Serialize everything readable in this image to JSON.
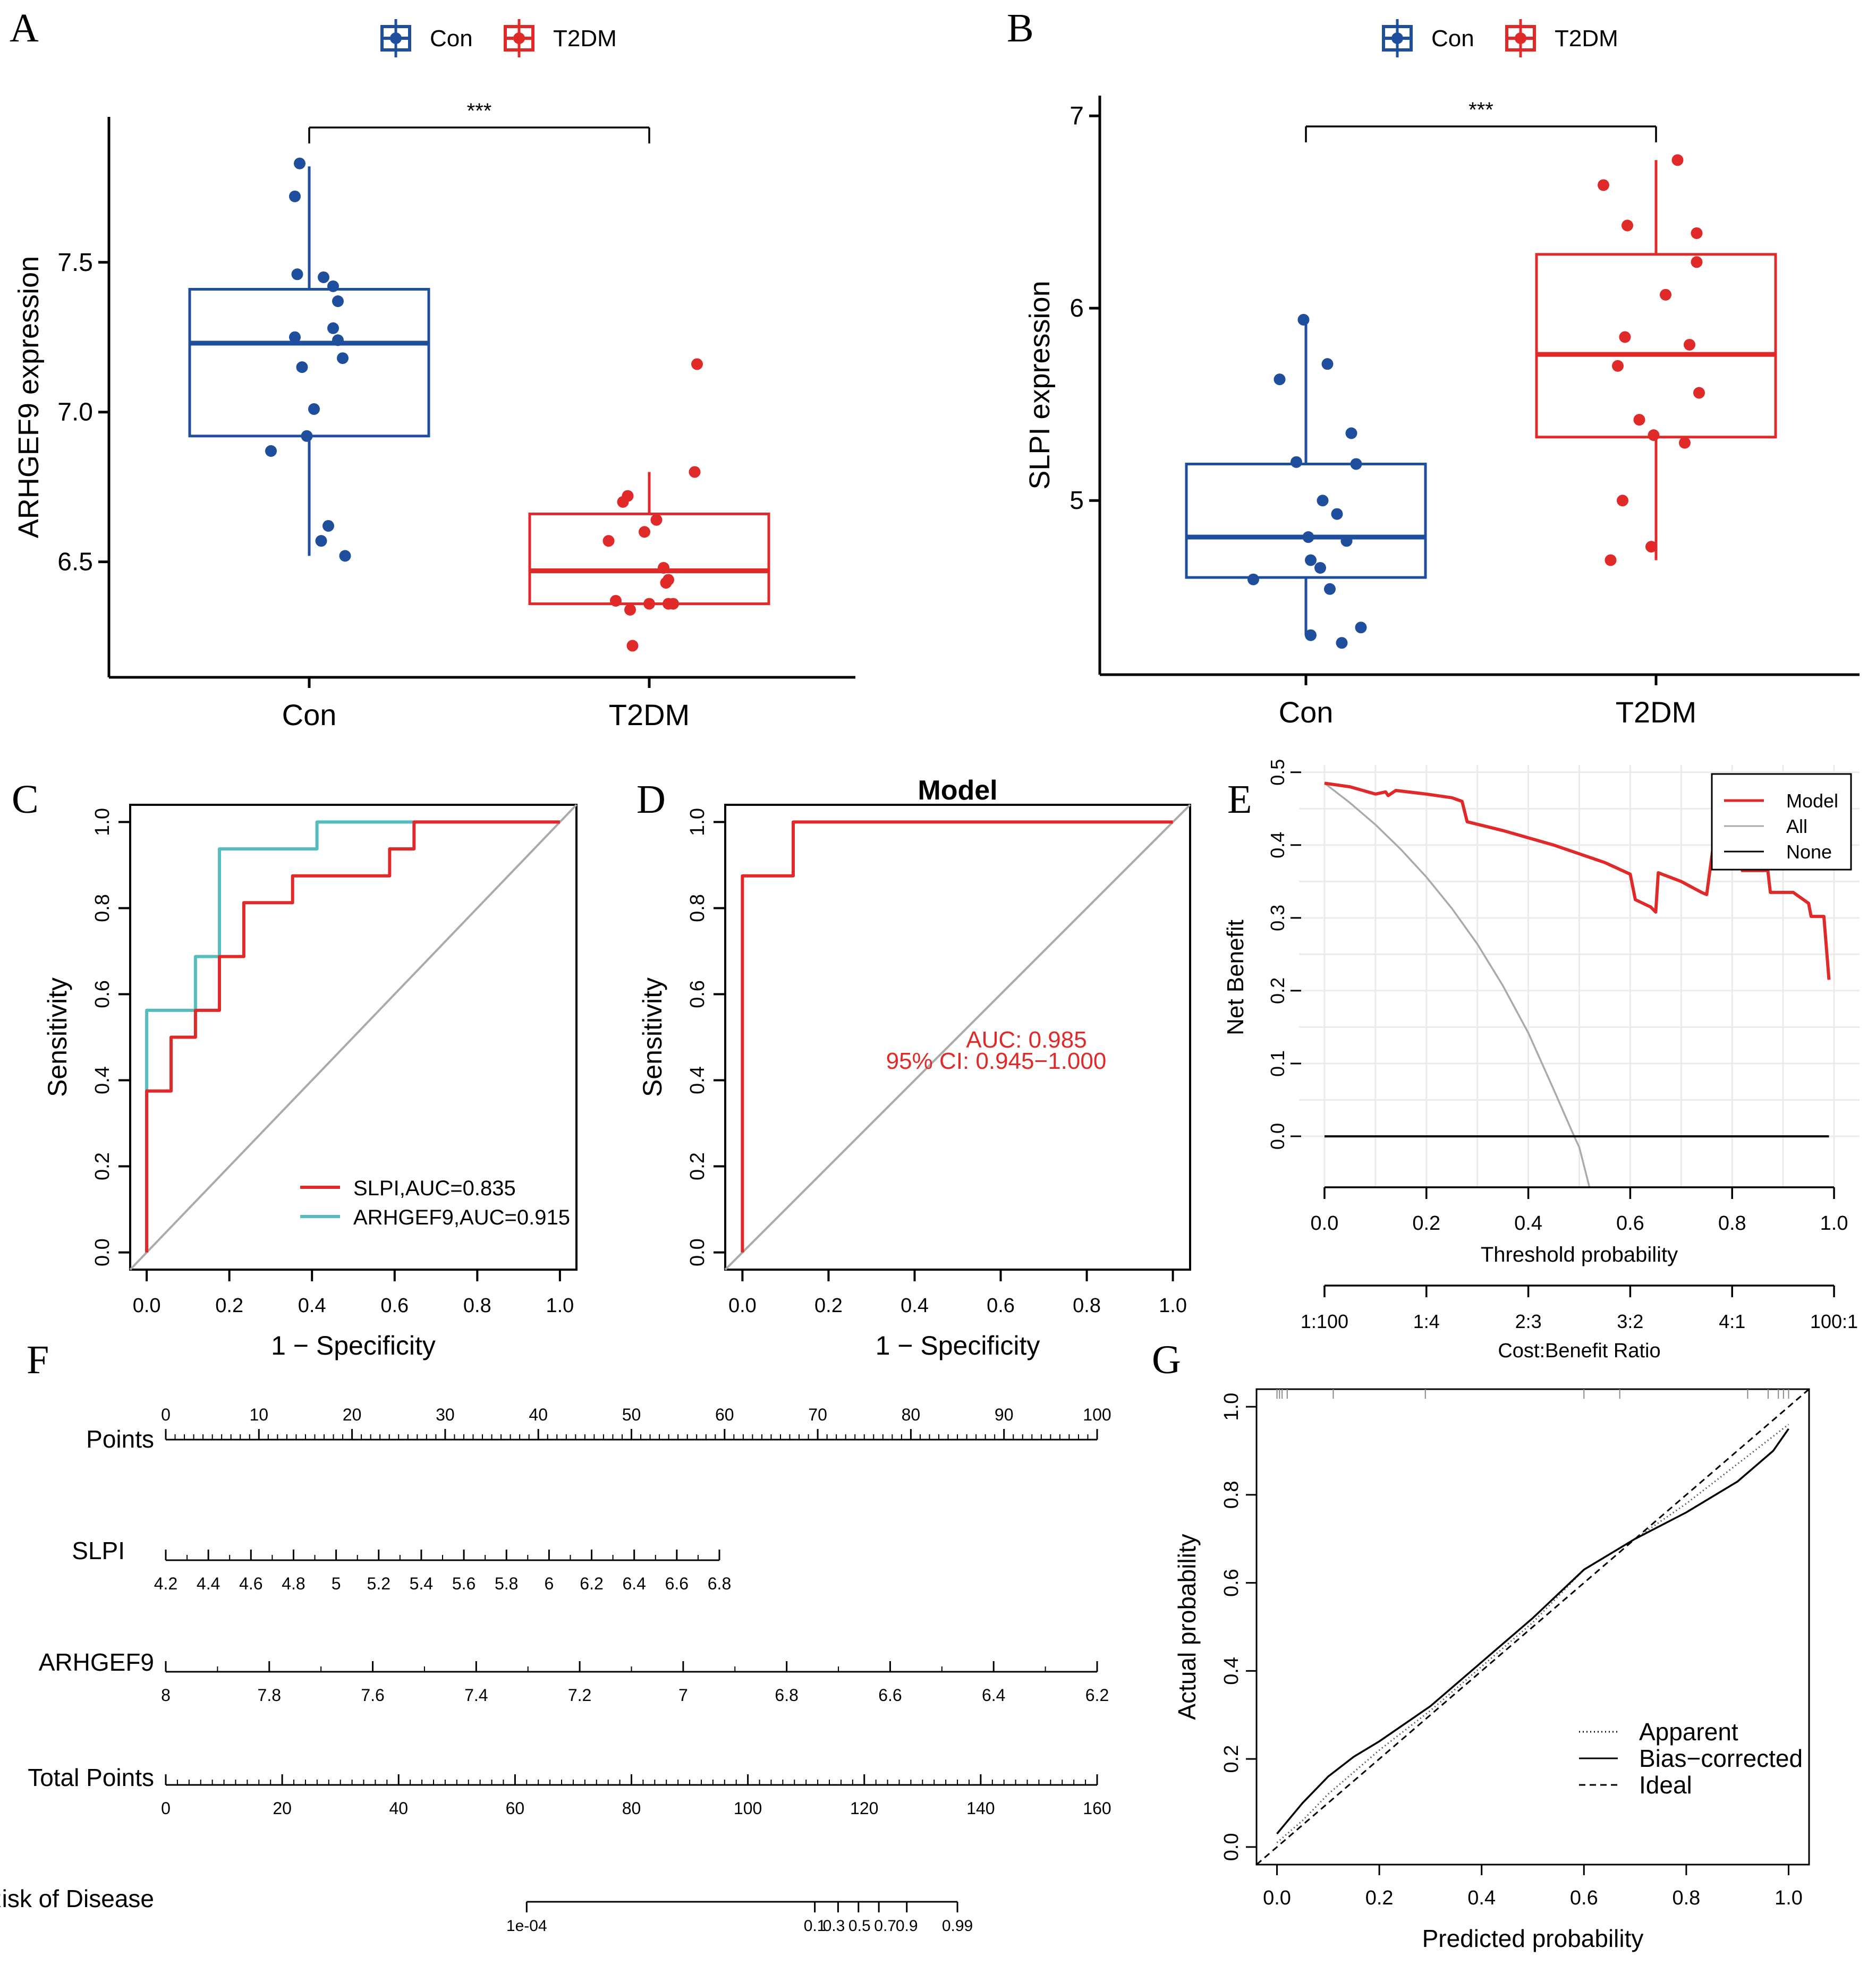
{
  "colors": {
    "con": "#1F4E9C",
    "t2dm": "#E02A2A",
    "teal": "#55BDBD",
    "gray": "#AAAAAA",
    "grid": "#EBEBEB",
    "black": "#000000"
  },
  "chart_data": [
    {
      "panel": "A",
      "type": "box",
      "legend": [
        "Con",
        "T2DM"
      ],
      "ylabel": "ARHGEF9 expression",
      "categories": [
        "Con",
        "T2DM"
      ],
      "yticks": [
        "6.5",
        "7.0",
        "7.5"
      ],
      "ylim": [
        6.15,
        7.95
      ],
      "significance": "***",
      "boxes": [
        {
          "group": "Con",
          "min": 6.52,
          "q1": 6.92,
          "median": 7.23,
          "q3": 7.41,
          "max": 7.82,
          "points": [
            [
              -0.04,
              7.83
            ],
            [
              -0.06,
              7.72
            ],
            [
              -0.05,
              7.46
            ],
            [
              0.06,
              7.45
            ],
            [
              0.1,
              7.42
            ],
            [
              0.12,
              7.37
            ],
            [
              -0.06,
              7.25
            ],
            [
              0.1,
              7.28
            ],
            [
              0.12,
              7.24
            ],
            [
              0.14,
              7.18
            ],
            [
              -0.03,
              7.15
            ],
            [
              0.02,
              7.01
            ],
            [
              -0.01,
              6.92
            ],
            [
              -0.16,
              6.87
            ],
            [
              0.08,
              6.62
            ],
            [
              0.05,
              6.57
            ],
            [
              0.15,
              6.52
            ]
          ]
        },
        {
          "group": "T2DM",
          "min": 6.36,
          "q1": 6.36,
          "median": 6.47,
          "q3": 6.66,
          "max": 6.8,
          "points": [
            [
              0.2,
              7.16
            ],
            [
              0.19,
              6.8
            ],
            [
              -0.09,
              6.72
            ],
            [
              -0.11,
              6.7
            ],
            [
              -0.17,
              6.57
            ],
            [
              -0.02,
              6.6
            ],
            [
              0.03,
              6.64
            ],
            [
              0.06,
              6.48
            ],
            [
              0.08,
              6.44
            ],
            [
              0.07,
              6.43
            ],
            [
              -0.14,
              6.37
            ],
            [
              -0.08,
              6.34
            ],
            [
              0.0,
              6.36
            ],
            [
              0.08,
              6.36
            ],
            [
              0.1,
              6.36
            ],
            [
              -0.07,
              6.22
            ]
          ]
        }
      ]
    },
    {
      "panel": "B",
      "type": "box",
      "legend": [
        "Con",
        "T2DM"
      ],
      "ylabel": "SLPI expression",
      "categories": [
        "Con",
        "T2DM"
      ],
      "yticks": [
        "5",
        "6",
        "7"
      ],
      "ylim": [
        4.15,
        7.05
      ],
      "significance": "***",
      "boxes": [
        {
          "group": "Con",
          "min": 4.3,
          "q1": 4.6,
          "median": 4.81,
          "q3": 5.19,
          "max": 5.95,
          "points": [
            [
              -0.01,
              5.94
            ],
            [
              0.09,
              5.71
            ],
            [
              -0.11,
              5.63
            ],
            [
              0.19,
              5.35
            ],
            [
              -0.04,
              5.2
            ],
            [
              0.21,
              5.19
            ],
            [
              0.07,
              5.0
            ],
            [
              0.13,
              4.93
            ],
            [
              0.01,
              4.81
            ],
            [
              0.17,
              4.79
            ],
            [
              0.02,
              4.69
            ],
            [
              0.06,
              4.65
            ],
            [
              -0.22,
              4.59
            ],
            [
              0.1,
              4.54
            ],
            [
              0.23,
              4.34
            ],
            [
              0.02,
              4.3
            ],
            [
              0.15,
              4.26
            ]
          ]
        },
        {
          "group": "T2DM",
          "min": 4.69,
          "q1": 5.33,
          "median": 5.76,
          "q3": 6.28,
          "max": 6.77,
          "points": [
            [
              0.09,
              6.77
            ],
            [
              -0.22,
              6.64
            ],
            [
              -0.12,
              6.43
            ],
            [
              0.17,
              6.39
            ],
            [
              0.17,
              6.24
            ],
            [
              0.04,
              6.07
            ],
            [
              -0.13,
              5.85
            ],
            [
              0.14,
              5.81
            ],
            [
              -0.16,
              5.7
            ],
            [
              0.18,
              5.56
            ],
            [
              -0.07,
              5.42
            ],
            [
              -0.01,
              5.34
            ],
            [
              0.12,
              5.3
            ],
            [
              -0.14,
              5.0
            ],
            [
              -0.02,
              4.76
            ],
            [
              -0.19,
              4.69
            ]
          ]
        }
      ]
    },
    {
      "panel": "C",
      "type": "line",
      "xlabel": "1 − Specificity",
      "ylabel": "Sensitivity",
      "xticks": [
        "0.0",
        "0.2",
        "0.4",
        "0.6",
        "0.8",
        "1.0"
      ],
      "yticks": [
        "0.0",
        "0.2",
        "0.4",
        "0.6",
        "0.8",
        "1.0"
      ],
      "xlim": [
        -0.04,
        1.04
      ],
      "ylim": [
        -0.04,
        1.04
      ],
      "series": [
        {
          "name": "SLPI",
          "legend": "SLPI,AUC=0.835",
          "points": [
            [
              0,
              0
            ],
            [
              0,
              0.375
            ],
            [
              0.059,
              0.375
            ],
            [
              0.059,
              0.5
            ],
            [
              0.118,
              0.5
            ],
            [
              0.118,
              0.5625
            ],
            [
              0.176,
              0.5625
            ],
            [
              0.176,
              0.6875
            ],
            [
              0.235,
              0.6875
            ],
            [
              0.235,
              0.8125
            ],
            [
              0.353,
              0.8125
            ],
            [
              0.353,
              0.875
            ],
            [
              0.588,
              0.875
            ],
            [
              0.588,
              0.9375
            ],
            [
              0.647,
              0.9375
            ],
            [
              0.647,
              1
            ],
            [
              1,
              1
            ]
          ]
        },
        {
          "name": "ARHGEF9",
          "legend": "ARHGEF9,AUC=0.915",
          "points": [
            [
              0,
              0
            ],
            [
              0,
              0.5625
            ],
            [
              0.118,
              0.5625
            ],
            [
              0.118,
              0.6875
            ],
            [
              0.176,
              0.6875
            ],
            [
              0.176,
              0.9375
            ],
            [
              0.412,
              0.9375
            ],
            [
              0.412,
              1
            ],
            [
              1,
              1
            ]
          ]
        }
      ]
    },
    {
      "panel": "D",
      "type": "line",
      "title": "Model",
      "xlabel": "1 − Specificity",
      "ylabel": "Sensitivity",
      "xticks": [
        "0.0",
        "0.2",
        "0.4",
        "0.6",
        "0.8",
        "1.0"
      ],
      "yticks": [
        "0.0",
        "0.2",
        "0.4",
        "0.6",
        "0.8",
        "1.0"
      ],
      "xlim": [
        -0.04,
        1.04
      ],
      "ylim": [
        -0.04,
        1.04
      ],
      "auc_text": "AUC: 0.985",
      "ci_text": "95% CI: 0.945−1.000",
      "series": [
        {
          "name": "Model",
          "points": [
            [
              0,
              0
            ],
            [
              0,
              0.875
            ],
            [
              0.118,
              0.875
            ],
            [
              0.118,
              1
            ],
            [
              1,
              1
            ]
          ]
        }
      ]
    },
    {
      "panel": "E",
      "type": "line",
      "xlabel": "Threshold probability",
      "ylabel": "Net Benefit",
      "xlabel2": "Cost:Benefit Ratio",
      "xticks": [
        "0.0",
        "0.2",
        "0.4",
        "0.6",
        "0.8",
        "1.0"
      ],
      "yticks": [
        "0.0",
        "0.1",
        "0.2",
        "0.3",
        "0.4",
        "0.5"
      ],
      "ratio_ticks": [
        "1:100",
        "1:4",
        "2:3",
        "3:2",
        "4:1",
        "100:1"
      ],
      "legend": [
        "Model",
        "All",
        "None"
      ],
      "xlim": [
        -0.05,
        1.05
      ],
      "ylim": [
        -0.07,
        0.51
      ],
      "series": [
        {
          "name": "Model",
          "points": [
            [
              0,
              0.485
            ],
            [
              0.05,
              0.48
            ],
            [
              0.1,
              0.47
            ],
            [
              0.12,
              0.473
            ],
            [
              0.125,
              0.468
            ],
            [
              0.14,
              0.475
            ],
            [
              0.2,
              0.47
            ],
            [
              0.25,
              0.465
            ],
            [
              0.27,
              0.46
            ],
            [
              0.28,
              0.432
            ],
            [
              0.35,
              0.42
            ],
            [
              0.45,
              0.4
            ],
            [
              0.55,
              0.376
            ],
            [
              0.6,
              0.36
            ],
            [
              0.61,
              0.325
            ],
            [
              0.64,
              0.315
            ],
            [
              0.65,
              0.308
            ],
            [
              0.655,
              0.362
            ],
            [
              0.7,
              0.35
            ],
            [
              0.74,
              0.335
            ],
            [
              0.75,
              0.332
            ],
            [
              0.765,
              0.41
            ],
            [
              0.8,
              0.4
            ],
            [
              0.805,
              0.42
            ],
            [
              0.82,
              0.365
            ],
            [
              0.87,
              0.365
            ],
            [
              0.875,
              0.335
            ],
            [
              0.92,
              0.335
            ],
            [
              0.95,
              0.32
            ],
            [
              0.955,
              0.302
            ],
            [
              0.98,
              0.302
            ],
            [
              0.99,
              0.215
            ]
          ]
        },
        {
          "name": "All",
          "points": [
            [
              0,
              0.485
            ],
            [
              0.05,
              0.458
            ],
            [
              0.1,
              0.428
            ],
            [
              0.15,
              0.394
            ],
            [
              0.2,
              0.356
            ],
            [
              0.25,
              0.313
            ],
            [
              0.3,
              0.264
            ],
            [
              0.35,
              0.207
            ],
            [
              0.4,
              0.142
            ],
            [
              0.45,
              0.064
            ],
            [
              0.49,
              0.0
            ],
            [
              0.5,
              -0.015
            ],
            [
              0.52,
              -0.07
            ]
          ]
        },
        {
          "name": "None",
          "points": [
            [
              0,
              0
            ],
            [
              0.99,
              0
            ]
          ]
        }
      ]
    },
    {
      "panel": "F",
      "type": "table",
      "rows": [
        {
          "label": "Points",
          "ticks": [
            "0",
            "10",
            "20",
            "30",
            "40",
            "50",
            "60",
            "70",
            "80",
            "90",
            "100"
          ]
        },
        {
          "label": "SLPI",
          "ticks": [
            "4.2",
            "4.4",
            "4.6",
            "4.8",
            "5",
            "5.2",
            "5.4",
            "5.6",
            "5.8",
            "6",
            "6.2",
            "6.4",
            "6.6",
            "6.8"
          ]
        },
        {
          "label": "ARHGEF9",
          "ticks": [
            "8",
            "7.8",
            "7.6",
            "7.4",
            "7.2",
            "7",
            "6.8",
            "6.6",
            "6.4",
            "6.2"
          ]
        },
        {
          "label": "Total Points",
          "ticks": [
            "0",
            "20",
            "40",
            "60",
            "80",
            "100",
            "120",
            "140",
            "160"
          ]
        },
        {
          "label": "Risk of Disease",
          "ticks": [
            "1e-04",
            "0.1",
            "0.3",
            "0.5",
            "0.7",
            "0.9",
            "0.99"
          ],
          "tick_points": [
            62,
            111.5,
            115.5,
            119,
            122.5,
            127.3,
            136
          ]
        }
      ]
    },
    {
      "panel": "G",
      "type": "line",
      "xlabel": "Predicted probability",
      "ylabel": "Actual probability",
      "xticks": [
        "0.0",
        "0.2",
        "0.4",
        "0.6",
        "0.8",
        "1.0"
      ],
      "yticks": [
        "0.0",
        "0.2",
        "0.4",
        "0.6",
        "0.8",
        "1.0"
      ],
      "legend": [
        "Apparent",
        "Bias−corrected",
        "Ideal"
      ],
      "xlim": [
        -0.04,
        1.04
      ],
      "ylim": [
        -0.04,
        1.04
      ],
      "series": [
        {
          "name": "Apparent",
          "points": [
            [
              0,
              0.01
            ],
            [
              0.05,
              0.06
            ],
            [
              0.1,
              0.12
            ],
            [
              0.15,
              0.17
            ],
            [
              0.2,
              0.22
            ],
            [
              0.3,
              0.31
            ],
            [
              0.4,
              0.41
            ],
            [
              0.5,
              0.51
            ],
            [
              0.6,
              0.63
            ],
            [
              0.7,
              0.7
            ],
            [
              0.8,
              0.78
            ],
            [
              0.9,
              0.87
            ],
            [
              1.0,
              0.96
            ]
          ]
        },
        {
          "name": "Bias−corrected",
          "points": [
            [
              0,
              0.03
            ],
            [
              0.05,
              0.1
            ],
            [
              0.1,
              0.16
            ],
            [
              0.15,
              0.205
            ],
            [
              0.2,
              0.24
            ],
            [
              0.3,
              0.32
            ],
            [
              0.4,
              0.42
            ],
            [
              0.5,
              0.52
            ],
            [
              0.6,
              0.63
            ],
            [
              0.7,
              0.7
            ],
            [
              0.8,
              0.76
            ],
            [
              0.9,
              0.83
            ],
            [
              0.97,
              0.9
            ],
            [
              1.0,
              0.95
            ]
          ]
        },
        {
          "name": "Ideal",
          "points": [
            [
              -0.04,
              -0.04
            ],
            [
              1.04,
              1.04
            ]
          ]
        }
      ]
    }
  ]
}
